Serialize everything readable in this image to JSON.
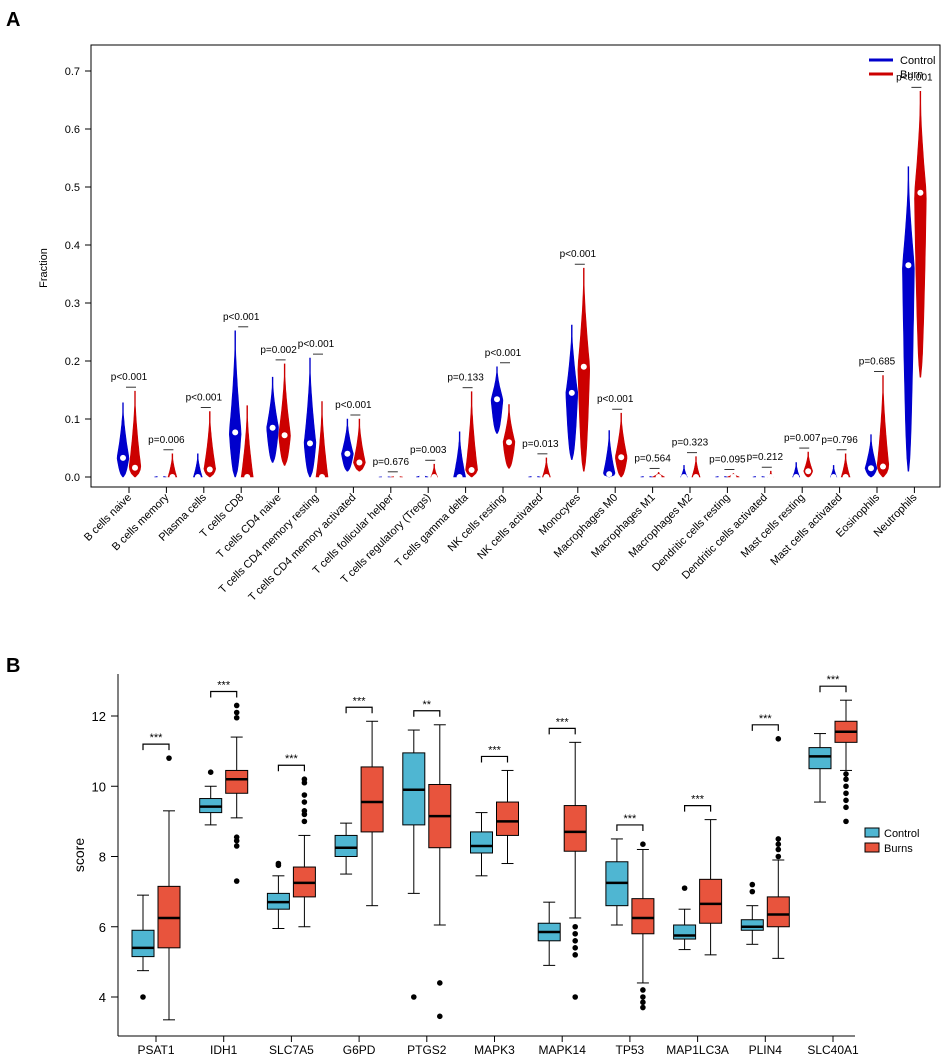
{
  "colors": {
    "control_violin": "#0000cc",
    "burn_violin": "#cc0000",
    "control_box": "#4fb6d2",
    "burns_box": "#e8543d"
  },
  "chart_data": [
    {
      "panel": "A",
      "type": "violin",
      "ylabel": "Fraction",
      "ylim": [
        0,
        0.75
      ],
      "yticks": [
        "0.0",
        "0.1",
        "0.2",
        "0.3",
        "0.4",
        "0.5",
        "0.6",
        "0.7"
      ],
      "legend": [
        "Control",
        "Burn"
      ],
      "legend_position": "top-right",
      "categories": [
        "B cells naive",
        "B cells memory",
        "Plasma cells",
        "T cells CD8",
        "T cells CD4 naive",
        "T cells CD4 memory resting",
        "T cells CD4 memory activated",
        "T cells follicular helper",
        "T cells regulatory (Tregs)",
        "T cells gamma delta",
        "NK cells resting",
        "NK cells activated",
        "Monocytes",
        "Macrophages M0",
        "Macrophages M1",
        "Macrophages M2",
        "Dendritic cells resting",
        "Dendritic cells activated",
        "Mast cells resting",
        "Mast cells activated",
        "Eosinophils",
        "Neutrophils"
      ],
      "pvalues": [
        "p<0.001",
        "p=0.006",
        "p<0.001",
        "p<0.001",
        "p=0.002",
        "p<0.001",
        "p<0.001",
        "p=0.676",
        "p=0.003",
        "p=0.133",
        "p<0.001",
        "p=0.013",
        "p<0.001",
        "p<0.001",
        "p=0.564",
        "p=0.323",
        "p=0.095",
        "p=0.212",
        "p=0.007",
        "p=0.796",
        "p=0.685",
        "p<0.001"
      ],
      "series": [
        {
          "name": "Control",
          "median": [
            0.033,
            0.0,
            0.0,
            0.077,
            0.085,
            0.058,
            0.04,
            0.0,
            0.0,
            0.0,
            0.134,
            0.0,
            0.145,
            0.005,
            0.0,
            0.0,
            0.0,
            0.0,
            0.0,
            0.0,
            0.015,
            0.365
          ],
          "min": [
            0.0,
            0.0,
            0.0,
            0.0,
            0.025,
            0.0,
            0.01,
            0.0,
            0.0,
            0.0,
            0.075,
            0.0,
            0.03,
            0.0,
            0.0,
            0.0,
            0.0,
            0.0,
            0.0,
            0.0,
            0.0,
            0.01
          ],
          "max": [
            0.128,
            0.003,
            0.04,
            0.252,
            0.172,
            0.205,
            0.1,
            0.001,
            0.004,
            0.078,
            0.19,
            0.003,
            0.262,
            0.08,
            0.003,
            0.02,
            0.003,
            0.003,
            0.025,
            0.02,
            0.073,
            0.535
          ]
        },
        {
          "name": "Burn",
          "median": [
            0.016,
            0.0,
            0.013,
            0.0,
            0.072,
            0.0,
            0.025,
            0.0,
            0.0,
            0.012,
            0.06,
            0.0,
            0.19,
            0.034,
            0.0,
            0.0,
            0.0,
            0.0,
            0.01,
            0.0,
            0.018,
            0.49
          ],
          "min": [
            0.0,
            0.0,
            0.0,
            0.0,
            0.02,
            0.0,
            0.01,
            0.0,
            0.0,
            0.0,
            0.015,
            0.0,
            0.01,
            0.0,
            0.0,
            0.0,
            0.0,
            0.0,
            0.0,
            0.0,
            0.0,
            0.172
          ],
          "max": [
            0.148,
            0.04,
            0.113,
            0.123,
            0.195,
            0.13,
            0.1,
            0.002,
            0.022,
            0.147,
            0.125,
            0.033,
            0.36,
            0.11,
            0.008,
            0.035,
            0.006,
            0.01,
            0.043,
            0.04,
            0.175,
            0.665
          ]
        }
      ]
    },
    {
      "panel": "B",
      "type": "box",
      "ylabel": "score",
      "ylim": [
        3.2,
        13.0
      ],
      "yticks": [
        "4",
        "6",
        "8",
        "10",
        "12"
      ],
      "legend": [
        "Control",
        "Burns"
      ],
      "legend_position": "right",
      "categories": [
        "PSAT1",
        "IDH1",
        "SLC7A5",
        "G6PD",
        "PTGS2",
        "MAPK3",
        "MAPK14",
        "TP53",
        "MAP1LC3A",
        "PLIN4",
        "SLC40A1"
      ],
      "significance": [
        "***",
        "***",
        "***",
        "***",
        "**",
        "***",
        "***",
        "***",
        "***",
        "***",
        "***"
      ],
      "series": [
        {
          "name": "Control",
          "boxes": [
            {
              "q1": 5.15,
              "median": 5.4,
              "q3": 5.9,
              "lo": 4.75,
              "hi": 6.9,
              "outliers": [
                4.0
              ]
            },
            {
              "q1": 9.25,
              "median": 9.42,
              "q3": 9.65,
              "lo": 8.9,
              "hi": 10.0,
              "outliers": [
                10.4
              ]
            },
            {
              "q1": 6.5,
              "median": 6.7,
              "q3": 6.95,
              "lo": 5.95,
              "hi": 7.45,
              "outliers": [
                7.75,
                7.8
              ]
            },
            {
              "q1": 8.0,
              "median": 8.25,
              "q3": 8.6,
              "lo": 7.5,
              "hi": 8.95,
              "outliers": []
            },
            {
              "q1": 8.9,
              "median": 9.9,
              "q3": 10.95,
              "lo": 6.95,
              "hi": 11.6,
              "outliers": [
                4.0
              ]
            },
            {
              "q1": 8.1,
              "median": 8.3,
              "q3": 8.7,
              "lo": 7.45,
              "hi": 9.25,
              "outliers": []
            },
            {
              "q1": 5.6,
              "median": 5.85,
              "q3": 6.1,
              "lo": 4.9,
              "hi": 6.7,
              "outliers": []
            },
            {
              "q1": 6.6,
              "median": 7.25,
              "q3": 7.85,
              "lo": 6.05,
              "hi": 8.5,
              "outliers": []
            },
            {
              "q1": 5.65,
              "median": 5.75,
              "q3": 6.05,
              "lo": 5.35,
              "hi": 6.5,
              "outliers": [
                7.1
              ]
            },
            {
              "q1": 5.9,
              "median": 6.0,
              "q3": 6.2,
              "lo": 5.5,
              "hi": 6.6,
              "outliers": [
                7.0,
                7.2
              ]
            },
            {
              "q1": 10.5,
              "median": 10.85,
              "q3": 11.1,
              "lo": 9.55,
              "hi": 11.5,
              "outliers": []
            }
          ]
        },
        {
          "name": "Burns",
          "boxes": [
            {
              "q1": 5.4,
              "median": 6.25,
              "q3": 7.15,
              "lo": 3.35,
              "hi": 9.3,
              "outliers": [
                10.8
              ]
            },
            {
              "q1": 9.8,
              "median": 10.2,
              "q3": 10.45,
              "lo": 9.1,
              "hi": 11.4,
              "outliers": [
                7.3,
                8.3,
                8.45,
                8.55,
                11.95,
                12.1,
                12.3
              ]
            },
            {
              "q1": 6.85,
              "median": 7.25,
              "q3": 7.7,
              "lo": 6.0,
              "hi": 8.6,
              "outliers": [
                9.0,
                9.2,
                9.3,
                9.55,
                9.75,
                10.1,
                10.2
              ]
            },
            {
              "q1": 8.7,
              "median": 9.55,
              "q3": 10.55,
              "lo": 6.6,
              "hi": 11.85,
              "outliers": []
            },
            {
              "q1": 8.25,
              "median": 9.15,
              "q3": 10.05,
              "lo": 6.05,
              "hi": 11.75,
              "outliers": [
                4.4,
                3.45
              ]
            },
            {
              "q1": 8.6,
              "median": 9.0,
              "q3": 9.55,
              "lo": 7.8,
              "hi": 10.45,
              "outliers": []
            },
            {
              "q1": 8.15,
              "median": 8.7,
              "q3": 9.45,
              "lo": 6.25,
              "hi": 11.25,
              "outliers": [
                4.0,
                5.2,
                5.4,
                5.6,
                5.8,
                6.0
              ]
            },
            {
              "q1": 5.8,
              "median": 6.25,
              "q3": 6.8,
              "lo": 4.4,
              "hi": 8.2,
              "outliers": [
                3.7,
                3.85,
                4.0,
                4.2,
                8.35
              ]
            },
            {
              "q1": 6.1,
              "median": 6.65,
              "q3": 7.35,
              "lo": 5.2,
              "hi": 9.05,
              "outliers": []
            },
            {
              "q1": 6.0,
              "median": 6.35,
              "q3": 6.85,
              "lo": 5.1,
              "hi": 7.9,
              "outliers": [
                8.0,
                8.2,
                8.35,
                8.5,
                11.35
              ]
            },
            {
              "q1": 11.25,
              "median": 11.55,
              "q3": 11.85,
              "lo": 10.45,
              "hi": 12.45,
              "outliers": [
                9.0,
                9.4,
                9.6,
                9.8,
                10.0,
                10.2,
                10.35
              ]
            }
          ]
        }
      ]
    }
  ]
}
